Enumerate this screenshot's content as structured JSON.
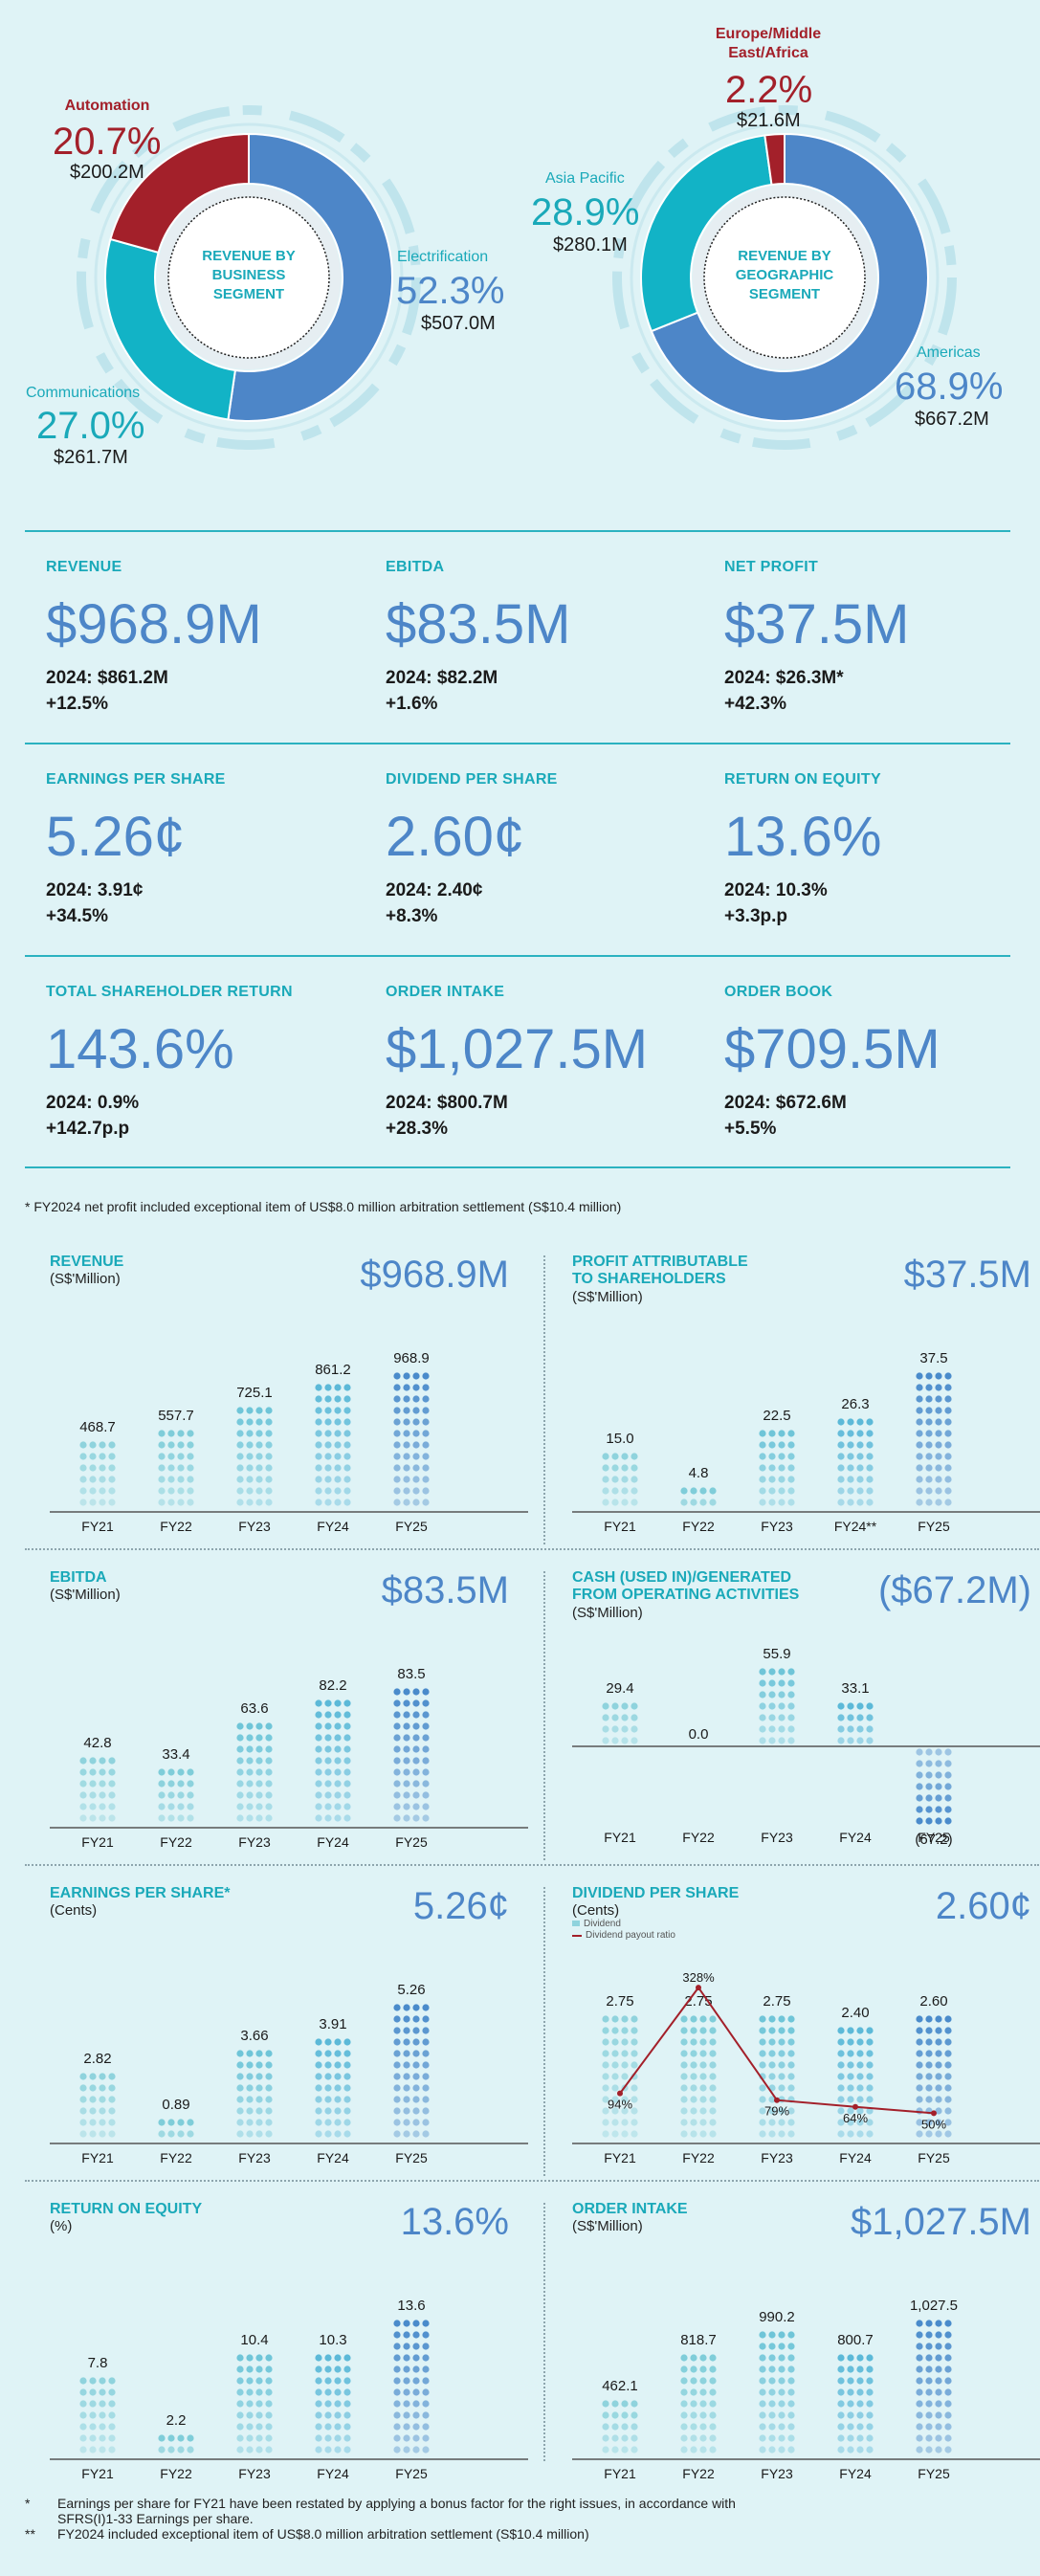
{
  "donuts": {
    "business": {
      "center": [
        "REVENUE BY",
        "BUSINESS",
        "SEGMENT"
      ],
      "segments": [
        {
          "name": "Electrification",
          "pct": "52.3%",
          "amt": "$507.0M",
          "value": 52.3,
          "color": "#4d86c8"
        },
        {
          "name": "Communications",
          "pct": "27.0%",
          "amt": "$261.7M",
          "value": 27.0,
          "color": "#12b3c6"
        },
        {
          "name": "Automation",
          "pct": "20.7%",
          "amt": "$200.2M",
          "value": 20.7,
          "color": "#a3202a"
        }
      ]
    },
    "geographic": {
      "center": [
        "REVENUE BY",
        "GEOGRAPHIC",
        "SEGMENT"
      ],
      "segments": [
        {
          "name": "Americas",
          "pct": "68.9%",
          "amt": "$667.2M",
          "value": 68.9,
          "color": "#4d86c8"
        },
        {
          "name": "Asia Pacific",
          "pct": "28.9%",
          "amt": "$280.1M",
          "value": 28.9,
          "color": "#12b3c6"
        },
        {
          "name": "Europe/Middle East/Africa",
          "name_lines": [
            "Europe/Middle",
            "East/Africa"
          ],
          "pct": "2.2%",
          "amt": "$21.6M",
          "value": 2.2,
          "color": "#a3202a"
        }
      ]
    }
  },
  "kpis": [
    {
      "label": "REVENUE",
      "cur": "$",
      "value": "968.9",
      "unit": "M",
      "prev": "2024: $861.2M",
      "change": "+12.5%"
    },
    {
      "label": "EBITDA",
      "cur": "$",
      "value": "83.5",
      "unit": "M",
      "prev": "2024: $82.2M",
      "change": "+1.6%"
    },
    {
      "label": "NET PROFIT",
      "cur": "$",
      "value": "37.5",
      "unit": "M",
      "prev": "2024: $26.3M*",
      "change": "+42.3%"
    },
    {
      "label": "EARNINGS PER SHARE",
      "cur": "",
      "value": "5.26",
      "unit": "¢",
      "prev": "2024: 3.91¢",
      "change": "+34.5%"
    },
    {
      "label": "DIVIDEND PER SHARE",
      "cur": "",
      "value": "2.60",
      "unit": "¢",
      "prev": "2024: 2.40¢",
      "change": "+8.3%"
    },
    {
      "label": "RETURN ON EQUITY",
      "cur": "",
      "value": "13.6",
      "unit": "%",
      "prev": "2024: 10.3%",
      "change": "+3.3p.p"
    },
    {
      "label": "TOTAL SHAREHOLDER RETURN",
      "cur": "",
      "value": "143.6",
      "unit": "%",
      "prev": "2024: 0.9%",
      "change": "+142.7p.p"
    },
    {
      "label": "ORDER INTAKE",
      "cur": "$",
      "value": "1,027.5",
      "unit": "M",
      "prev": "2024: $800.7M",
      "change": "+28.3%"
    },
    {
      "label": "ORDER BOOK",
      "cur": "$",
      "value": "709.5",
      "unit": "M",
      "prev": "2024: $672.6M",
      "change": "+5.5%"
    }
  ],
  "footnote_top": "*    FY2024 net profit included exceptional item of US$8.0 million arbitration settlement (S$10.4 million)",
  "chart_data": [
    {
      "type": "bar",
      "title_lines": [
        "REVENUE"
      ],
      "unit": "(S$'Million)",
      "headline": "$968.9M",
      "categories": [
        "FY21",
        "FY22",
        "FY23",
        "FY24",
        "FY25"
      ],
      "values": [
        468.7,
        557.7,
        725.1,
        861.2,
        968.9
      ],
      "labels": [
        "468.7",
        "557.7",
        "725.1",
        "861.2",
        "968.9"
      ],
      "ylim": [
        0,
        1000
      ]
    },
    {
      "type": "bar",
      "title_lines": [
        "PROFIT ATTRIBUTABLE",
        "TO SHAREHOLDERS"
      ],
      "unit": "(S$'Million)",
      "headline": "$37.5M",
      "categories": [
        "FY21",
        "FY22",
        "FY23",
        "FY24**",
        "FY25"
      ],
      "values": [
        15.0,
        4.8,
        22.5,
        26.3,
        37.5
      ],
      "labels": [
        "15.0",
        "4.8",
        "22.5",
        "26.3",
        "37.5"
      ],
      "ylim": [
        0,
        40
      ]
    },
    {
      "type": "bar",
      "title_lines": [
        "EBITDA"
      ],
      "unit": "(S$'Million)",
      "headline": "$83.5M",
      "categories": [
        "FY21",
        "FY22",
        "FY23",
        "FY24",
        "FY25"
      ],
      "values": [
        42.8,
        33.4,
        63.6,
        82.2,
        83.5
      ],
      "labels": [
        "42.8",
        "33.4",
        "63.6",
        "82.2",
        "83.5"
      ],
      "ylim": [
        0,
        90
      ]
    },
    {
      "type": "bar",
      "title_lines": [
        "CASH (USED IN)/GENERATED",
        "FROM OPERATING ACTIVITIES"
      ],
      "unit": "(S$'Million)",
      "headline": "($67.2M)",
      "categories": [
        "FY21",
        "FY22",
        "FY23",
        "FY24",
        "FY25"
      ],
      "values": [
        29.4,
        0.0,
        55.9,
        33.1,
        -67.2
      ],
      "labels": [
        "29.4",
        "0.0",
        "55.9",
        "33.1",
        "(67.2)"
      ],
      "ylim": [
        -70,
        60
      ]
    },
    {
      "type": "bar",
      "title_lines": [
        "EARNINGS PER SHARE*"
      ],
      "unit": "(Cents)",
      "headline": "5.26¢",
      "categories": [
        "FY21",
        "FY22",
        "FY23",
        "FY24",
        "FY25"
      ],
      "values": [
        2.82,
        0.89,
        3.66,
        3.91,
        5.26
      ],
      "labels": [
        "2.82",
        "0.89",
        "3.66",
        "3.91",
        "5.26"
      ],
      "ylim": [
        0,
        5.5
      ]
    },
    {
      "type": "bar",
      "title_lines": [
        "DIVIDEND PER SHARE"
      ],
      "unit": "(Cents)",
      "headline": "2.60¢",
      "categories": [
        "FY21",
        "FY22",
        "FY23",
        "FY24",
        "FY25"
      ],
      "values": [
        2.75,
        2.75,
        2.75,
        2.4,
        2.6
      ],
      "labels": [
        "2.75",
        "2.75",
        "2.75",
        "2.40",
        "2.60"
      ],
      "ylim": [
        0,
        3
      ],
      "legend": [
        "Dividend",
        "Dividend payout ratio"
      ],
      "line_series": {
        "name": "Dividend payout ratio",
        "values": [
          94,
          328,
          79,
          64,
          50
        ],
        "labels": [
          "94%",
          "328%",
          "79%",
          "64%",
          "50%"
        ],
        "ylim": [
          0,
          360
        ],
        "color": "#a3202a"
      }
    },
    {
      "type": "bar",
      "title_lines": [
        "RETURN ON EQUITY"
      ],
      "unit": "(%)",
      "headline": "13.6%",
      "categories": [
        "FY21",
        "FY22",
        "FY23",
        "FY24",
        "FY25"
      ],
      "values": [
        7.8,
        2.2,
        10.4,
        10.3,
        13.6
      ],
      "labels": [
        "7.8",
        "2.2",
        "10.4",
        "10.3",
        "13.6"
      ],
      "ylim": [
        0,
        14.5
      ]
    },
    {
      "type": "bar",
      "title_lines": [
        "ORDER INTAKE"
      ],
      "unit": "(S$'Million)",
      "headline": "$1,027.5M",
      "categories": [
        "FY21",
        "FY22",
        "FY23",
        "FY24",
        "FY25"
      ],
      "values": [
        462.1,
        818.7,
        990.2,
        800.7,
        1027.5
      ],
      "labels": [
        "462.1",
        "818.7",
        "990.2",
        "800.7",
        "1,027.5"
      ],
      "ylim": [
        0,
        1080
      ]
    }
  ],
  "footnotes_bottom": [
    {
      "mark": "*",
      "lines": [
        "Earnings per share for FY21 have been restated by applying a bonus factor for the right issues, in accordance with",
        "SFRS(I)1-33 Earnings per share."
      ]
    },
    {
      "mark": "**",
      "lines": [
        "FY2024 included exceptional item of US$8.0 million arbitration settlement (S$10.4 million)"
      ]
    }
  ]
}
